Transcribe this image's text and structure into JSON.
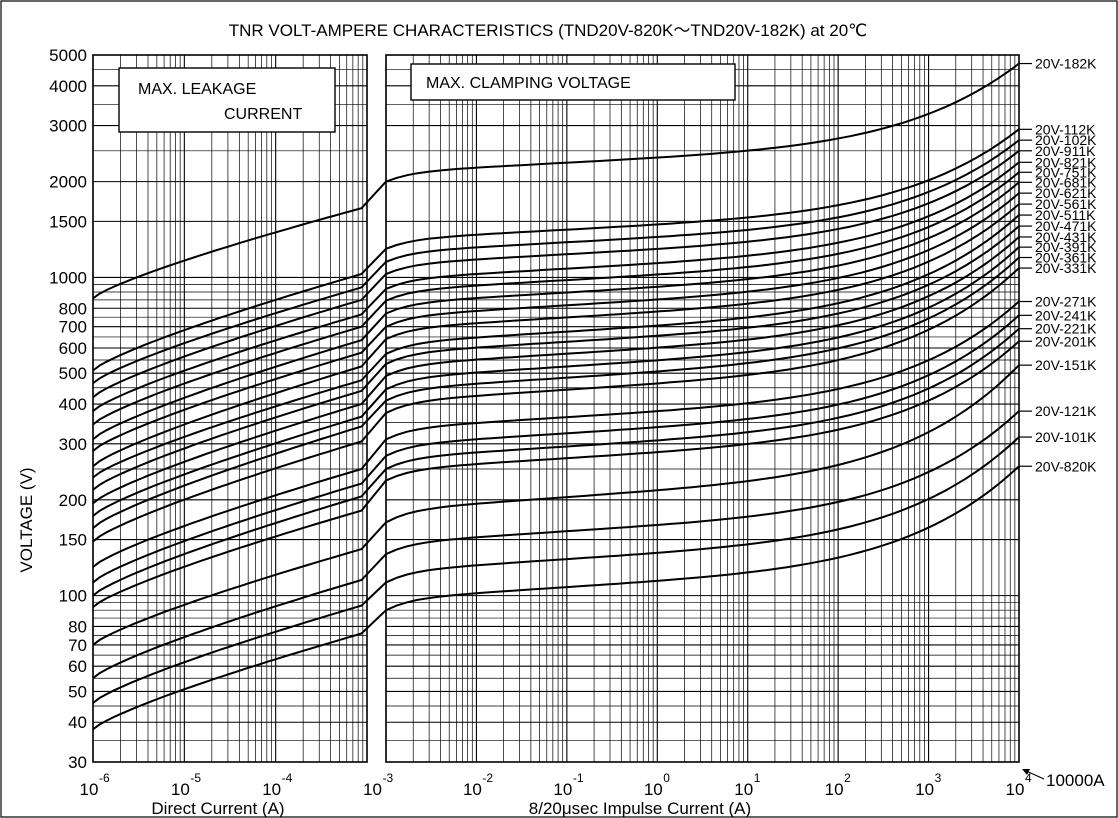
{
  "chart_data": {
    "type": "line",
    "title": "TNR  VOLT-AMPERE  CHARACTERISTICS (TND20V-820K〜TND20V-182K)  at 20℃",
    "ylabel": "VOLTAGE (V)",
    "xlabel_left": "Direct  Current (A)",
    "xlabel_right": "8/20μsec  Impulse  Current (A)",
    "y_scale": "log",
    "ylim": [
      30,
      5000
    ],
    "y_ticks": [
      30,
      40,
      50,
      60,
      70,
      80,
      100,
      150,
      200,
      300,
      400,
      500,
      600,
      700,
      800,
      1000,
      1500,
      2000,
      3000,
      4000,
      5000
    ],
    "x_scale": "log",
    "left_panel": {
      "name": "MAX. LEAKAGE CURRENT",
      "box_lines": [
        "MAX.    LEAKAGE",
        "CURRENT"
      ],
      "xlim": [
        1e-06,
        0.001
      ],
      "tick_exponents": [
        -6,
        -5,
        -4,
        -3
      ]
    },
    "right_panel": {
      "name": "MAX. CLAMPING VOLTAGE",
      "box_lines": [
        "MAX.  CLAMPING  VOLTAGE"
      ],
      "xlim": [
        0.001,
        10000
      ],
      "tick_exponents": [
        -2,
        -1,
        0,
        1,
        2,
        3,
        4
      ]
    },
    "x_tick_base": "10",
    "annotation": "10000A",
    "grid": true,
    "series": [
      {
        "name": "20V-182K",
        "leak": [
          860,
          1650
        ],
        "clamp": [
          2000,
          4700
        ]
      },
      {
        "name": "20V-112K",
        "leak": [
          510,
          1025
        ],
        "clamp": [
          1230,
          2920
        ]
      },
      {
        "name": "20V-102K",
        "leak": [
          465,
          930
        ],
        "clamp": [
          1120,
          2700
        ]
      },
      {
        "name": "20V-911K",
        "leak": [
          420,
          850
        ],
        "clamp": [
          1025,
          2500
        ]
      },
      {
        "name": "20V-821K",
        "leak": [
          380,
          765
        ],
        "clamp": [
          920,
          2300
        ]
      },
      {
        "name": "20V-751K",
        "leak": [
          345,
          700
        ],
        "clamp": [
          845,
          2140
        ]
      },
      {
        "name": "20V-681K",
        "leak": [
          310,
          635
        ],
        "clamp": [
          770,
          1990
        ]
      },
      {
        "name": "20V-621K",
        "leak": [
          285,
          580
        ],
        "clamp": [
          700,
          1840
        ]
      },
      {
        "name": "20V-561K",
        "leak": [
          255,
          525
        ],
        "clamp": [
          640,
          1700
        ]
      },
      {
        "name": "20V-511K",
        "leak": [
          235,
          475
        ],
        "clamp": [
          575,
          1570
        ]
      },
      {
        "name": "20V-471K",
        "leak": [
          215,
          440
        ],
        "clamp": [
          535,
          1450
        ]
      },
      {
        "name": "20V-431K",
        "leak": [
          195,
          400
        ],
        "clamp": [
          490,
          1340
        ]
      },
      {
        "name": "20V-391K",
        "leak": [
          178,
          365
        ],
        "clamp": [
          445,
          1245
        ]
      },
      {
        "name": "20V-361K",
        "leak": [
          163,
          340
        ],
        "clamp": [
          410,
          1155
        ]
      },
      {
        "name": "20V-331K",
        "leak": [
          148,
          305
        ],
        "clamp": [
          375,
          1070
        ]
      },
      {
        "name": "20V-271K",
        "leak": [
          123,
          250
        ],
        "clamp": [
          310,
          840
        ]
      },
      {
        "name": "20V-241K",
        "leak": [
          110,
          225
        ],
        "clamp": [
          275,
          760
        ]
      },
      {
        "name": "20V-221K",
        "leak": [
          100,
          205
        ],
        "clamp": [
          250,
          690
        ]
      },
      {
        "name": "20V-201K",
        "leak": [
          92,
          185
        ],
        "clamp": [
          230,
          630
        ]
      },
      {
        "name": "20V-151K",
        "leak": [
          70,
          140
        ],
        "clamp": [
          170,
          530
        ]
      },
      {
        "name": "20V-121K",
        "leak": [
          55,
          112
        ],
        "clamp": [
          135,
          380
        ]
      },
      {
        "name": "20V-101K",
        "leak": [
          46,
          93
        ],
        "clamp": [
          110,
          315
        ]
      },
      {
        "name": "20V-820K",
        "leak": [
          38,
          76
        ],
        "clamp": [
          90,
          255
        ]
      }
    ],
    "label_y": [
      4700,
      2920,
      2700,
      2500,
      2300,
      2140,
      1990,
      1840,
      1700,
      1570,
      1450,
      1340,
      1245,
      1155,
      1070,
      840,
      760,
      690,
      630,
      530,
      380,
      315,
      255
    ]
  }
}
